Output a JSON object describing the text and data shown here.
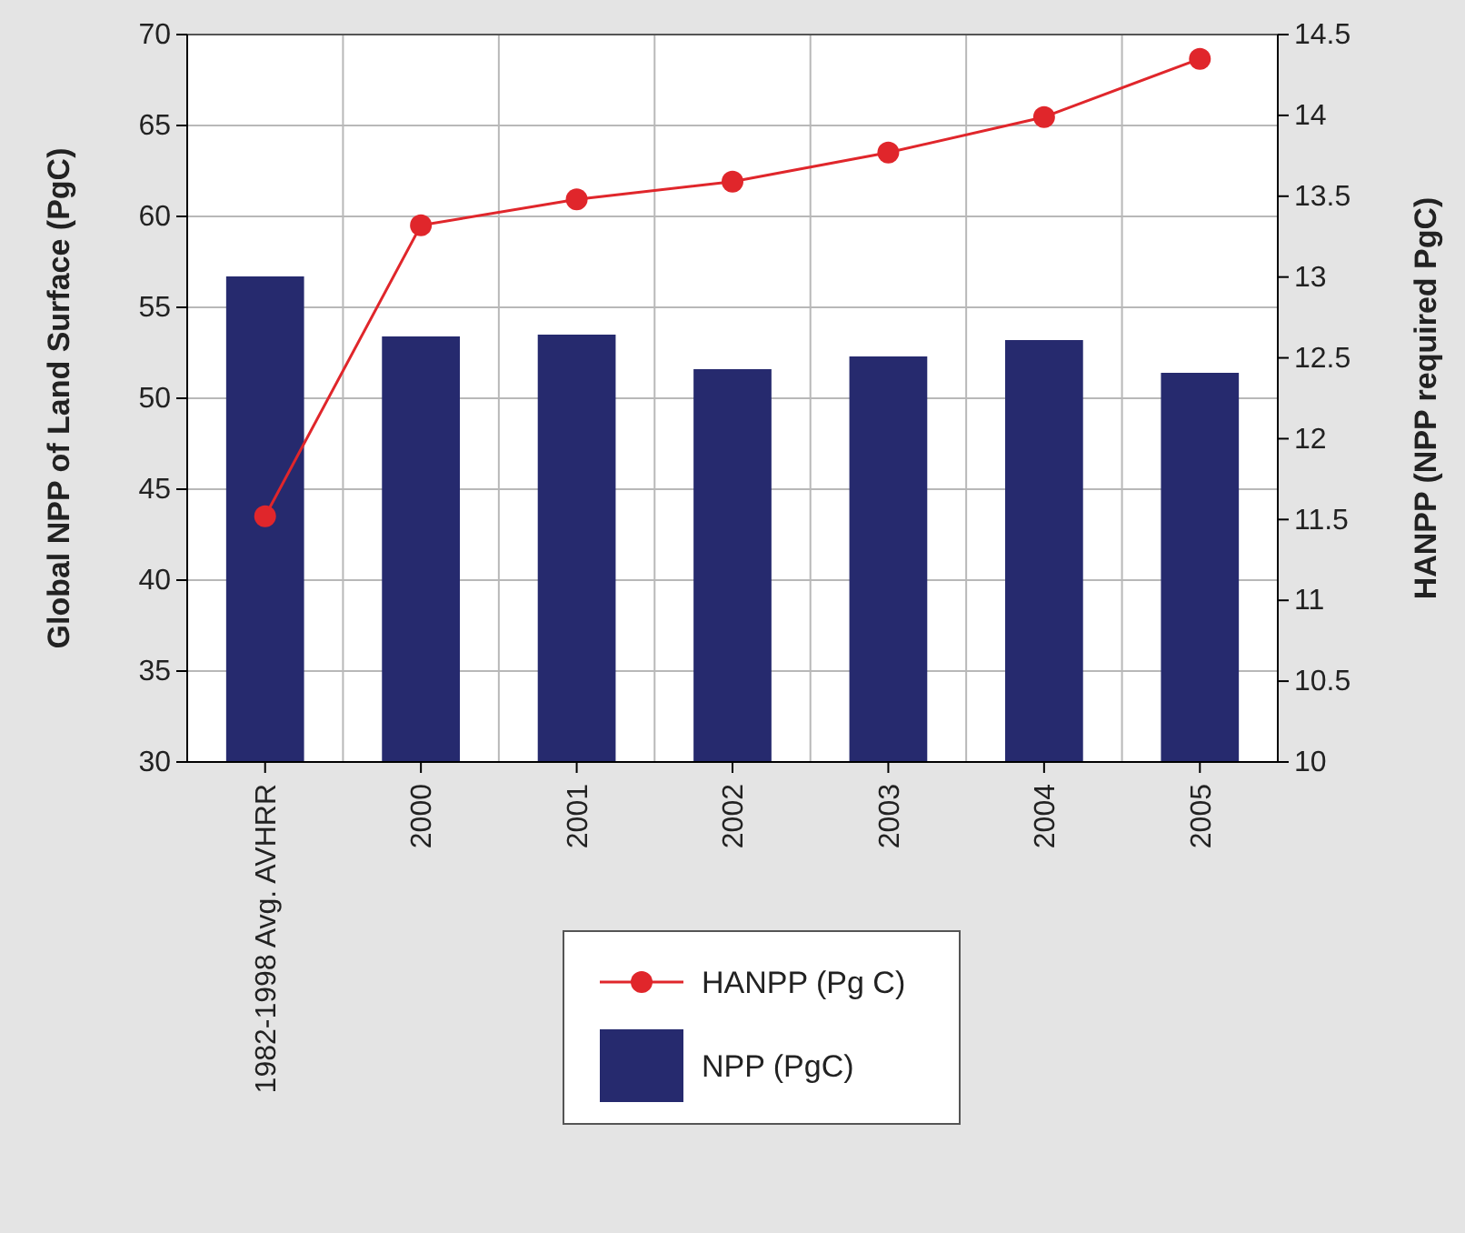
{
  "chart_data": {
    "type": "bar",
    "ylabel": "Global NPP of Land Surface (PgC)",
    "y2label": "HANPP (NPP required PgC)",
    "categories": [
      "1982-1998 Avg. AVHRR",
      "2000",
      "2001",
      "2002",
      "2003",
      "2004",
      "2005"
    ],
    "series": [
      {
        "name": "HANPP (Pg C)",
        "type": "line",
        "axis": "y2",
        "color": "#e0262b",
        "marker": "circle",
        "values": [
          11.52,
          13.32,
          13.48,
          13.59,
          13.77,
          13.99,
          14.35
        ]
      },
      {
        "name": "NPP (PgC)",
        "color": "#262a6e",
        "values": [
          56.7,
          53.4,
          53.5,
          51.6,
          52.3,
          53.2,
          51.4
        ]
      }
    ],
    "ylim": [
      30,
      70
    ],
    "yticks": [
      30,
      35,
      40,
      45,
      50,
      55,
      60,
      65,
      70
    ],
    "y2lim": [
      10,
      14.5
    ],
    "y2ticks": [
      10,
      10.5,
      11,
      11.5,
      12,
      12.5,
      13,
      13.5,
      14,
      14.5
    ],
    "grid": true,
    "legend": "bottom"
  }
}
